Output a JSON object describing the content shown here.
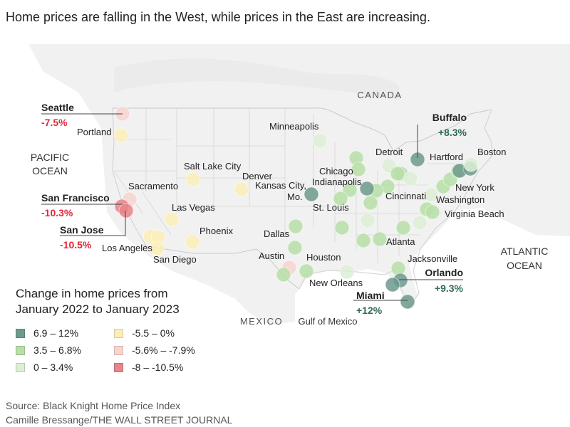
{
  "headline": "Home prices are falling in the West, while prices in the East are increasing.",
  "map": {
    "regions": {
      "canada": "CANADA",
      "mexico": "MEXICO",
      "pacific_line1": "PACIFIC",
      "pacific_line2": "OCEAN",
      "atlantic_line1": "ATLANTIC",
      "atlantic_line2": "OCEAN",
      "gulf": "Gulf of Mexico"
    },
    "highlights": {
      "seattle": {
        "city": "Seattle",
        "change": "-7.5%"
      },
      "san_francisco": {
        "city": "San Francisco",
        "change": "-10.3%"
      },
      "san_jose": {
        "city": "San Jose",
        "change": "-10.5%"
      },
      "buffalo": {
        "city": "Buffalo",
        "change": "+8.3%"
      },
      "orlando": {
        "city": "Orlando",
        "change": "+9.3%"
      },
      "miami": {
        "city": "Miami",
        "change": "+12%"
      }
    },
    "city_labels": {
      "portland": "Portland",
      "sacramento": "Sacramento",
      "salt_lake_city": "Salt Lake City",
      "denver": "Denver",
      "las_vegas": "Las Vegas",
      "los_angeles": "Los Angeles",
      "san_diego": "San Diego",
      "phoenix": "Phoenix",
      "minneapolis": "Minneapolis",
      "kansas_city_line1": "Kansas City,",
      "kansas_city_line2": "Mo.",
      "chicago": "Chicago",
      "indianapolis": "Indianapolis",
      "st_louis": "St. Louis",
      "detroit": "Detroit",
      "cincinnati": "Cincinnati",
      "dallas": "Dallas",
      "austin": "Austin",
      "houston": "Houston",
      "new_orleans": "New Orleans",
      "atlanta": "Atlanta",
      "jacksonville": "Jacksonville",
      "hartford": "Hartford",
      "boston": "Boston",
      "new_york": "New York",
      "washington": "Washington",
      "virginia_beach": "Virginia Beach"
    },
    "colors": {
      "c1": "#6d9a8e",
      "c2": "#b7dfa7",
      "c3": "#dcefd6",
      "c4": "#fbeeb8",
      "c5": "#f9d4cf",
      "c6": "#e8848a",
      "neg_text": "#e2283a",
      "pos_text": "#2f6b59"
    },
    "bubbles": [
      {
        "id": "seattle",
        "cat": "c5"
      },
      {
        "id": "portland",
        "cat": "c4"
      },
      {
        "id": "sacramento",
        "cat": "c5"
      },
      {
        "id": "san-francisco",
        "cat": "c6"
      },
      {
        "id": "san-jose",
        "cat": "c6"
      },
      {
        "id": "las-vegas",
        "cat": "c4"
      },
      {
        "id": "los-angeles",
        "cat": "c4"
      },
      {
        "id": "riverside",
        "cat": "c4"
      },
      {
        "id": "san-diego",
        "cat": "c4"
      },
      {
        "id": "phoenix",
        "cat": "c4"
      },
      {
        "id": "salt-lake-city",
        "cat": "c4"
      },
      {
        "id": "denver",
        "cat": "c4"
      },
      {
        "id": "minneapolis",
        "cat": "c3"
      },
      {
        "id": "kansas-city",
        "cat": "c1"
      },
      {
        "id": "dallas",
        "cat": "c2"
      },
      {
        "id": "austin",
        "cat": "c5"
      },
      {
        "id": "san-antonio",
        "cat": "c2"
      },
      {
        "id": "houston",
        "cat": "c2"
      },
      {
        "id": "oklahoma-city",
        "cat": "c2"
      },
      {
        "id": "milwaukee",
        "cat": "c2"
      },
      {
        "id": "chicago",
        "cat": "c2"
      },
      {
        "id": "indianapolis",
        "cat": "c2"
      },
      {
        "id": "st-louis",
        "cat": "c2"
      },
      {
        "id": "memphis",
        "cat": "c2"
      },
      {
        "id": "nashville",
        "cat": "c3"
      },
      {
        "id": "birmingham",
        "cat": "c2"
      },
      {
        "id": "new-orleans",
        "cat": "c3"
      },
      {
        "id": "atlanta",
        "cat": "c2"
      },
      {
        "id": "detroit",
        "cat": "c3"
      },
      {
        "id": "cleveland",
        "cat": "c2"
      },
      {
        "id": "columbus",
        "cat": "c2"
      },
      {
        "id": "pittsburgh",
        "cat": "c3"
      },
      {
        "id": "cincinnati",
        "cat": "c2"
      },
      {
        "id": "dayton",
        "cat": "c1"
      },
      {
        "id": "louisville",
        "cat": "c2"
      },
      {
        "id": "charlotte",
        "cat": "c2"
      },
      {
        "id": "raleigh",
        "cat": "c3"
      },
      {
        "id": "richmond",
        "cat": "c2"
      },
      {
        "id": "virginia-beach",
        "cat": "c2"
      },
      {
        "id": "washington",
        "cat": "c3"
      },
      {
        "id": "baltimore",
        "cat": "c2"
      },
      {
        "id": "philadelphia",
        "cat": "c2"
      },
      {
        "id": "new-york",
        "cat": "c2"
      },
      {
        "id": "hartford",
        "cat": "c1"
      },
      {
        "id": "providence",
        "cat": "c1"
      },
      {
        "id": "boston",
        "cat": "c3"
      },
      {
        "id": "buffalo",
        "cat": "c1"
      },
      {
        "id": "rochester",
        "cat": "c2"
      },
      {
        "id": "jacksonville",
        "cat": "c2"
      },
      {
        "id": "orlando",
        "cat": "c1"
      },
      {
        "id": "tampa",
        "cat": "c1"
      },
      {
        "id": "miami",
        "cat": "c1"
      }
    ]
  },
  "legend": {
    "title_line1": "Change in home prices from",
    "title_line2": "January 2022 to January 2023",
    "items": [
      {
        "label": "6.9 – 12%",
        "color": "#6d9a8e"
      },
      {
        "label": "3.5 – 6.8%",
        "color": "#b7dfa7"
      },
      {
        "label": "0 – 3.4%",
        "color": "#dcefd6"
      },
      {
        "label": "-5.5 – 0%",
        "color": "#fbeeb8"
      },
      {
        "label": "-5.6% – -7.9%",
        "color": "#f9d4cf"
      },
      {
        "label": "-8 – -10.5%",
        "color": "#e8848a"
      }
    ]
  },
  "footer": {
    "source": "Source: Black Knight Home Price Index",
    "credit": "Camille Bressange/THE WALL STREET JOURNAL"
  }
}
